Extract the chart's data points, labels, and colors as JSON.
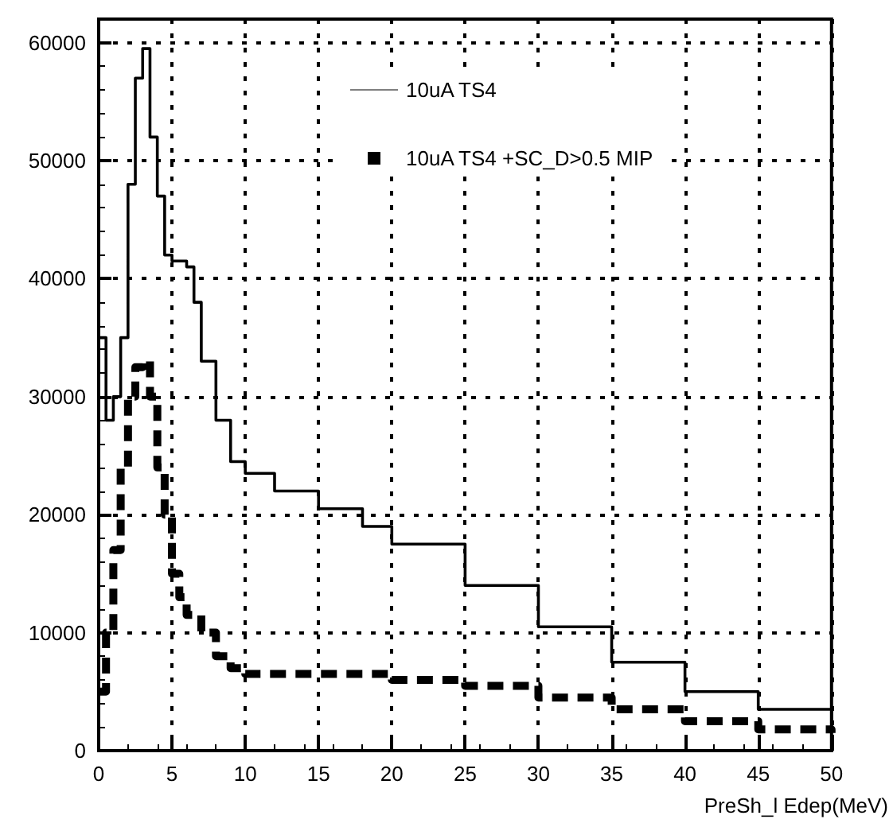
{
  "chart_data": {
    "type": "step",
    "xlabel": "PreSh_l Edep(MeV)",
    "xlim": [
      0,
      50
    ],
    "xticks": [
      0,
      5,
      10,
      15,
      20,
      25,
      30,
      35,
      40,
      45,
      50
    ],
    "ylim": [
      0,
      62000
    ],
    "yticks": [
      0,
      10000,
      20000,
      30000,
      40000,
      50000,
      60000
    ],
    "grid": true,
    "legend": "top",
    "marker": "none",
    "series": [
      {
        "name": "10uA TS4",
        "color": "#000000",
        "line_style": "solid",
        "x": [
          0,
          0.5,
          1,
          1.5,
          2,
          2.5,
          3,
          3.5,
          4,
          4.5,
          5,
          6,
          6.5,
          7,
          8,
          9,
          10,
          12,
          15,
          18,
          20,
          25,
          30,
          35,
          40,
          45,
          50
        ],
        "values": [
          35000,
          28000,
          30000,
          35000,
          48000,
          57000,
          59500,
          52000,
          47000,
          42000,
          41500,
          41000,
          38000,
          33000,
          28000,
          24500,
          23500,
          22000,
          20500,
          19000,
          17500,
          14000,
          10500,
          7500,
          5000,
          3500,
          2500
        ]
      },
      {
        "name": "10uA TS4 +SC_D>0.5 MIP",
        "color": "#000000",
        "line_style": "dashed",
        "x": [
          0,
          0.5,
          1,
          1.5,
          2,
          2.5,
          3,
          3.5,
          4,
          4.5,
          5,
          5.5,
          6,
          7,
          8,
          9,
          10,
          15,
          20,
          25,
          30,
          35,
          40,
          45,
          50
        ],
        "values": [
          5000,
          10000,
          17000,
          24000,
          30000,
          32500,
          33000,
          30000,
          24000,
          20000,
          15000,
          13000,
          11500,
          10000,
          8000,
          7000,
          6500,
          6500,
          6000,
          5500,
          4500,
          3500,
          2500,
          1800,
          1500
        ]
      }
    ]
  }
}
